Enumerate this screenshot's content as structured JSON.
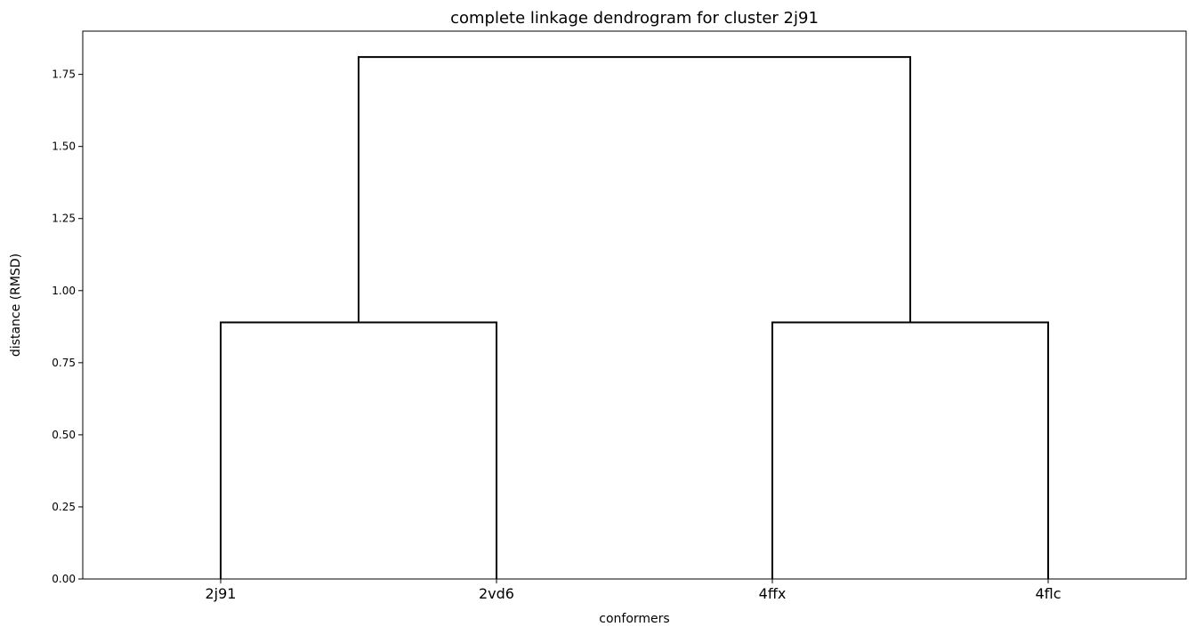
{
  "chart_data": {
    "type": "dendrogram",
    "title": "complete linkage dendrogram for cluster 2j91",
    "xlabel": "conformers",
    "ylabel": "distance (RMSD)",
    "leaves": [
      "2j91",
      "2vd6",
      "4ffx",
      "4flc"
    ],
    "merges": [
      {
        "children": [
          "2j91",
          "2vd6"
        ],
        "height": 0.89
      },
      {
        "children": [
          "4ffx",
          "4flc"
        ],
        "height": 0.89
      },
      {
        "children": [
          "2j91+2vd6",
          "4ffx+4flc"
        ],
        "height": 1.81
      }
    ],
    "ylim": [
      0,
      1.9
    ],
    "yticks": [
      0.0,
      0.25,
      0.5,
      0.75,
      1.0,
      1.25,
      1.5,
      1.75
    ],
    "ytick_labels": [
      "0.00",
      "0.25",
      "0.50",
      "0.75",
      "1.00",
      "1.25",
      "1.50",
      "1.75"
    ],
    "line_color": "#000000",
    "grid": false,
    "legend": "none"
  }
}
